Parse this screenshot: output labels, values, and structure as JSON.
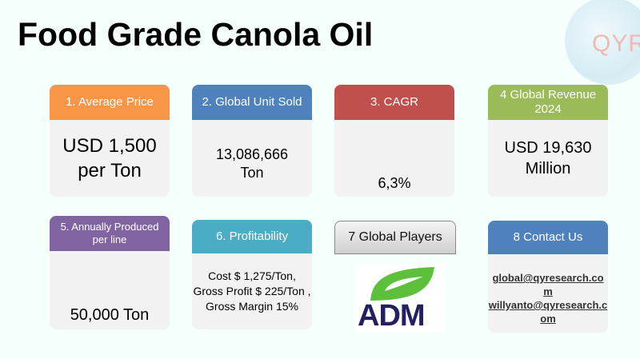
{
  "title": "Food Grade Canola Oil",
  "logo_text": "QYR",
  "cards": [
    {
      "header": "1. Average Price",
      "lines": [
        "USD 1,500",
        "per Ton"
      ]
    },
    {
      "header": "2. Global Unit Sold",
      "lines": [
        "13,086,666",
        "Ton"
      ]
    },
    {
      "header": "3. CAGR",
      "value": "6,3%"
    },
    {
      "header": "4 Global Revenue 2024",
      "lines": [
        "USD 19,630",
        "Million"
      ]
    },
    {
      "header": "5. Annually Produced per line",
      "value": "50,000 Ton"
    },
    {
      "header": "6. Profitability",
      "value": "Cost $ 1,275/Ton, Gross Profit $ 225/Ton , Gross Margin 15%"
    },
    {
      "header": "7 Global Players",
      "player_logo": "ADM"
    },
    {
      "header": "8 Contact Us",
      "emails": [
        "global@qyresearch.com",
        "willyanto@qyresearch.com"
      ]
    }
  ],
  "colors": {
    "orange": "#f79646",
    "blue": "#4f81bd",
    "red": "#c0504d",
    "green": "#9bbb59",
    "purple": "#8064a2",
    "teal": "#4bacc6"
  }
}
